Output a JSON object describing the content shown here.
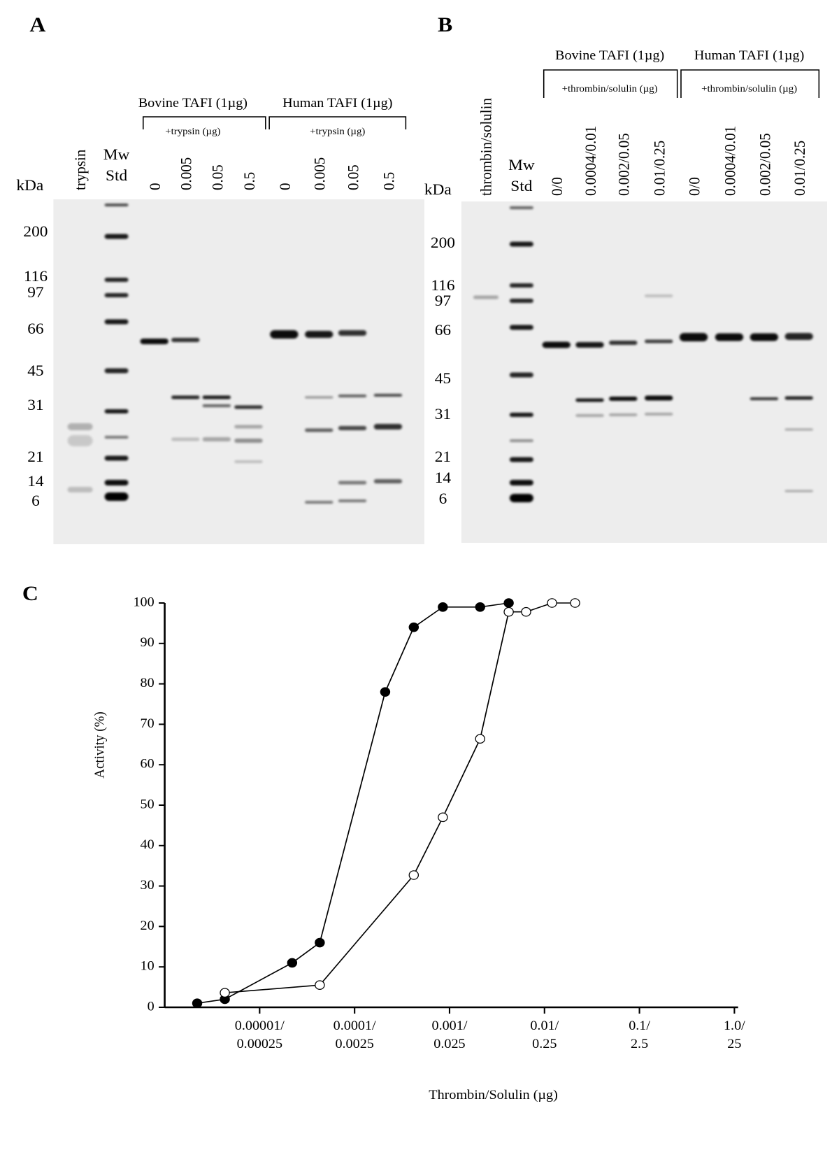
{
  "panel_a": {
    "label": "A",
    "kda": "kDa",
    "markers": [
      "200",
      "116",
      "97",
      "66",
      "45",
      "31",
      "21",
      "14",
      "6"
    ],
    "control_lane": "trypsin",
    "std_lane": [
      "Mw",
      "Std"
    ],
    "groups": [
      {
        "name": "Bovine TAFI (1µg)",
        "treatment": "+trypsin (µg)",
        "lanes": [
          "0",
          "0.005",
          "0.05",
          "0.5"
        ]
      },
      {
        "name": "Human TAFI (1µg)",
        "treatment": "+trypsin (µg)",
        "lanes": [
          "0",
          "0.005",
          "0.05",
          "0.5"
        ]
      }
    ]
  },
  "panel_b": {
    "label": "B",
    "kda": "kDa",
    "markers": [
      "200",
      "116",
      "97",
      "66",
      "45",
      "31",
      "21",
      "14",
      "6"
    ],
    "control_lane": "thrombin/solulin",
    "std_lane": [
      "Mw",
      "Std"
    ],
    "groups": [
      {
        "name": "Bovine TAFI (1µg)",
        "treatment": "+thrombin/solulin (µg)",
        "lanes": [
          "0/0",
          "0.0004/0.01",
          "0.002/0.05",
          "0.01/0.25"
        ]
      },
      {
        "name": "Human TAFI (1µg)",
        "treatment": "+thrombin/solulin (µg)",
        "lanes": [
          "0/0",
          "0.0004/0.01",
          "0.002/0.05",
          "0.01/0.25"
        ]
      }
    ]
  },
  "chart_data": {
    "type": "line",
    "panel_label": "C",
    "x_label": "Thrombin/Solulin (µg)",
    "y_label": "Activity (%)",
    "xscale": "log",
    "xlim": [
      1e-06,
      1
    ],
    "xticks": [
      {
        "value": 1e-05,
        "label": "0.00001/\n0.00025"
      },
      {
        "value": 0.0001,
        "label": "0.0001/\n0.0025"
      },
      {
        "value": 0.001,
        "label": "0.001/\n0.025"
      },
      {
        "value": 0.01,
        "label": "0.01/\n0.25"
      },
      {
        "value": 0.1,
        "label": "0.1/\n2.5"
      },
      {
        "value": 1,
        "label": "1.0/\n25"
      }
    ],
    "ylim": [
      0,
      100
    ],
    "yticks": [
      0,
      10,
      20,
      30,
      40,
      50,
      60,
      70,
      80,
      90,
      100
    ],
    "series": [
      {
        "marker": "filled",
        "color": "#000000",
        "x": [
          2.2e-06,
          4.3e-06,
          2.2e-05,
          4.3e-05,
          0.00021,
          0.00042,
          0.00085,
          0.0021,
          0.0042
        ],
        "values": [
          1,
          2,
          11,
          16,
          78,
          94,
          99,
          99,
          100
        ]
      },
      {
        "marker": "open",
        "color": "#000000",
        "x": [
          4.3e-06,
          4.3e-05,
          0.00042,
          0.00085,
          0.0021,
          0.0042,
          0.0064,
          0.012,
          0.021
        ],
        "values": [
          3.6,
          5.5,
          32.7,
          47,
          66.4,
          97.8,
          97.8,
          100,
          100
        ]
      }
    ]
  }
}
